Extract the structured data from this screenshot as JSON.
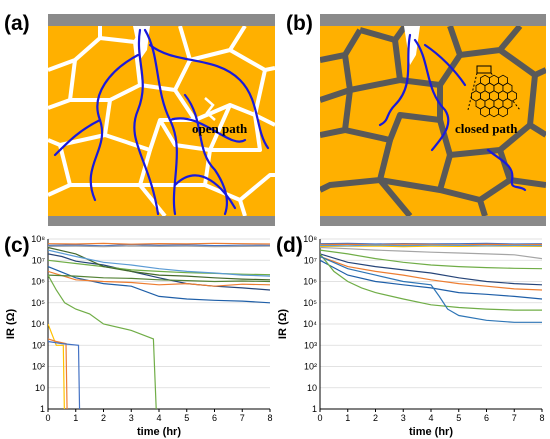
{
  "figure": {
    "panel_labels": [
      "(a)",
      "(b)",
      "(c)",
      "(d)"
    ],
    "annotations": {
      "a": "open path",
      "b": "closed path"
    },
    "colors": {
      "grain": "#ffb000",
      "electrode": "#8a8a8a",
      "boundary_open": "#ffffff",
      "boundary_closed": "#595959",
      "conduction_path": "#1a1adb"
    }
  },
  "chart_data": [
    {
      "type": "line",
      "panel": "(c)",
      "title": "",
      "xlabel": "time (hr)",
      "ylabel": "IR (Ω)",
      "xlim": [
        0,
        8
      ],
      "ylim": [
        1,
        100000000
      ],
      "yscale": "log",
      "grid": true,
      "legend": "none",
      "x_ticks": [
        "0",
        "1",
        "2",
        "3",
        "4",
        "5",
        "6",
        "7",
        "8"
      ],
      "y_ticks": [
        "1",
        "10",
        "10²",
        "10³",
        "10⁴",
        "10⁵",
        "10⁶",
        "10⁷",
        "10⁸"
      ],
      "series": [
        {
          "color": "#4472c4",
          "x": [
            0,
            1,
            2,
            3,
            4,
            5,
            6,
            7,
            8
          ],
          "y": [
            50000000,
            52000000,
            48000000,
            55000000,
            50000000,
            53000000,
            49000000,
            51000000,
            50000000
          ]
        },
        {
          "color": "#ed7d31",
          "x": [
            0,
            1,
            2,
            3,
            4,
            5,
            6,
            7,
            8
          ],
          "y": [
            60000000,
            58000000,
            62000000,
            57000000,
            61000000,
            59000000,
            63000000,
            60000000,
            58000000
          ]
        },
        {
          "color": "#a5a5a5",
          "x": [
            0,
            1,
            2,
            3,
            4,
            5,
            6,
            7,
            8
          ],
          "y": [
            45000000,
            46000000,
            44000000,
            47000000,
            45000000,
            46000000,
            44000000,
            45000000,
            46000000
          ]
        },
        {
          "color": "#264478",
          "x": [
            0,
            0.5,
            1,
            2,
            3,
            4,
            5,
            6,
            7,
            8
          ],
          "y": [
            20000000,
            15000000,
            9000000,
            6000000,
            3000000,
            1500000,
            800000,
            600000,
            500000,
            400000
          ]
        },
        {
          "color": "#1f5fa8",
          "x": [
            0,
            1,
            2,
            3,
            4,
            5,
            6,
            7,
            8
          ],
          "y": [
            5000000,
            1500000,
            800000,
            600000,
            200000,
            150000,
            130000,
            120000,
            100000
          ]
        },
        {
          "color": "#ed7d31",
          "x": [
            0,
            1,
            2,
            3,
            4,
            5,
            6,
            7,
            8
          ],
          "y": [
            3000000,
            1200000,
            1000000,
            900000,
            700000,
            800000,
            600000,
            750000,
            700000
          ]
        },
        {
          "color": "#70ad47",
          "x": [
            0,
            1,
            2,
            3,
            4,
            5,
            6,
            7,
            8
          ],
          "y": [
            10000000,
            7000000,
            5000000,
            3500000,
            3000000,
            2600000,
            2400000,
            2200000,
            2100000
          ]
        },
        {
          "color": "#548235",
          "x": [
            0,
            1,
            2,
            3,
            4,
            5,
            6,
            7,
            8
          ],
          "y": [
            2000000,
            1800000,
            1500000,
            1400000,
            1200000,
            1100000,
            1000000,
            1050000,
            1000000
          ]
        },
        {
          "color": "#43682b",
          "x": [
            0,
            1,
            2,
            3,
            4,
            5,
            6,
            7,
            8
          ],
          "y": [
            40000000,
            20000000,
            5000000,
            3000000,
            2000000,
            1800000,
            1500000,
            1300000,
            1200000
          ]
        },
        {
          "color": "#5b9bd5",
          "x": [
            0,
            1,
            2,
            3,
            4,
            5,
            6,
            7,
            8
          ],
          "y": [
            30000000,
            15000000,
            8000000,
            6000000,
            4000000,
            3000000,
            2500000,
            2000000,
            1800000
          ]
        },
        {
          "color": "#70ad47",
          "x": [
            0,
            0.3,
            0.6,
            1,
            1.5,
            2,
            3,
            3.8,
            3.9,
            4.0
          ],
          "y": [
            2000000,
            400000,
            100000,
            50000,
            30000,
            10000,
            5000,
            2000,
            1,
            0.1
          ]
        },
        {
          "color": "#ffc000",
          "x": [
            0,
            0.3,
            0.55,
            0.6
          ],
          "y": [
            10000,
            1000,
            1000,
            0.1
          ]
        },
        {
          "color": "#ed7d31",
          "x": [
            0,
            0.3,
            0.65,
            0.7
          ],
          "y": [
            2000,
            1500,
            1200,
            0.1
          ]
        },
        {
          "color": "#4472c4",
          "x": [
            0,
            0.5,
            1.1,
            1.15
          ],
          "y": [
            1500,
            1200,
            1000,
            0.1
          ]
        }
      ]
    },
    {
      "type": "line",
      "panel": "(d)",
      "title": "",
      "xlabel": "time (hr)",
      "ylabel": "IR (Ω)",
      "xlim": [
        0,
        8
      ],
      "ylim": [
        1,
        100000000
      ],
      "yscale": "log",
      "grid": true,
      "legend": "none",
      "x_ticks": [
        "0",
        "1",
        "2",
        "3",
        "4",
        "5",
        "6",
        "7",
        "8"
      ],
      "y_ticks": [
        "1",
        "10",
        "10²",
        "10³",
        "10⁴",
        "10⁵",
        "10⁶",
        "10⁷",
        "10⁸"
      ],
      "series": [
        {
          "color": "#4472c4",
          "x": [
            0,
            1,
            2,
            3,
            4,
            5,
            6,
            7,
            8
          ],
          "y": [
            60000000,
            62000000,
            58000000,
            61000000,
            59000000,
            60000000,
            62000000,
            58000000,
            60000000
          ]
        },
        {
          "color": "#ed7d31",
          "x": [
            0,
            1,
            2,
            3,
            4,
            5,
            6,
            7,
            8
          ],
          "y": [
            55000000,
            56000000,
            54000000,
            57000000,
            55000000,
            53000000,
            56000000,
            54000000,
            55000000
          ]
        },
        {
          "color": "#ffc000",
          "x": [
            0,
            1,
            2,
            3,
            4,
            5,
            6,
            7,
            8
          ],
          "y": [
            45000000,
            46000000,
            47000000,
            44000000,
            46000000,
            45000000,
            47000000,
            46000000,
            45000000
          ]
        },
        {
          "color": "#5b9bd5",
          "x": [
            0,
            1,
            2,
            3,
            4,
            5,
            6,
            7,
            8
          ],
          "y": [
            50000000,
            48000000,
            52000000,
            49000000,
            51000000,
            50000000,
            48000000,
            50000000,
            49000000
          ]
        },
        {
          "color": "#a5a5a5",
          "x": [
            0,
            1,
            2,
            3,
            4,
            5,
            6,
            7,
            8
          ],
          "y": [
            40000000,
            35000000,
            30000000,
            27000000,
            24000000,
            22000000,
            20000000,
            18000000,
            12000000
          ]
        },
        {
          "color": "#70ad47",
          "x": [
            0,
            1,
            2,
            3,
            4,
            5,
            6,
            7,
            8
          ],
          "y": [
            30000000,
            20000000,
            12000000,
            8000000,
            6000000,
            5000000,
            4500000,
            4200000,
            4000000
          ]
        },
        {
          "color": "#264478",
          "x": [
            0,
            1,
            2,
            3,
            4,
            5,
            6,
            7,
            8
          ],
          "y": [
            20000000,
            8000000,
            5000000,
            3500000,
            2500000,
            1500000,
            1000000,
            800000,
            700000
          ]
        },
        {
          "color": "#ed7d31",
          "x": [
            0,
            1,
            2,
            3,
            4,
            5,
            6,
            7,
            8
          ],
          "y": [
            15000000,
            5000000,
            3000000,
            2000000,
            1200000,
            800000,
            600000,
            450000,
            400000
          ]
        },
        {
          "color": "#1f5fa8",
          "x": [
            0,
            1,
            2,
            3,
            4,
            5,
            6,
            7,
            8
          ],
          "y": [
            10000000,
            2000000,
            1000000,
            700000,
            500000,
            300000,
            250000,
            200000,
            150000
          ]
        },
        {
          "color": "#70ad47",
          "x": [
            0,
            0.5,
            1,
            1.5,
            2,
            3,
            4,
            5,
            6,
            7,
            8
          ],
          "y": [
            20000000,
            3000000,
            1000000,
            500000,
            300000,
            150000,
            80000,
            60000,
            50000,
            45000,
            45000
          ]
        },
        {
          "color": "#2e75b6",
          "x": [
            0,
            1,
            2,
            3,
            4,
            4.3,
            4.6,
            5,
            6,
            7,
            8
          ],
          "y": [
            15000000,
            4000000,
            2000000,
            1000000,
            700000,
            200000,
            50000,
            25000,
            15000,
            12000,
            12000
          ]
        }
      ]
    }
  ]
}
